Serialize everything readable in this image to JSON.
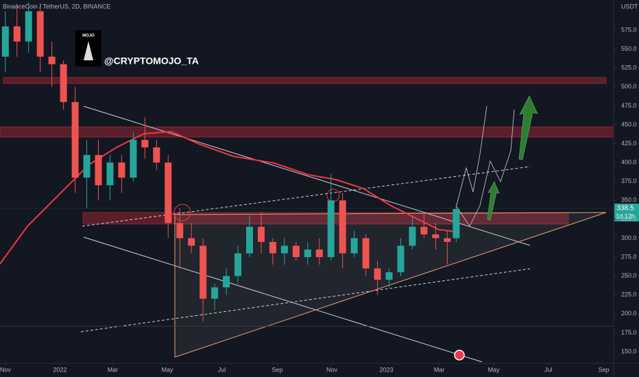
{
  "chart_data": {
    "type": "candlestick",
    "title": "BinanceCoin / TetherUS, 2D, BINANCE",
    "axis_unit": "USDT",
    "watermark": "@CRYPTOMOJO_TA",
    "logo_text": "MOJO",
    "countdown": "1d 12h",
    "up_color": "#26a69a",
    "down_color": "#ef5350",
    "grid": false,
    "xlim": [
      "2021-10-26",
      "2023-09-12"
    ],
    "xticks": [
      {
        "value": "2021-11-01",
        "label": "Nov"
      },
      {
        "value": "2022-01-01",
        "label": "2022"
      },
      {
        "value": "2022-03-01",
        "label": "Mar"
      },
      {
        "value": "2022-05-01",
        "label": "May"
      },
      {
        "value": "2022-07-01",
        "label": "Jul"
      },
      {
        "value": "2022-09-01",
        "label": "Sep"
      },
      {
        "value": "2022-11-01",
        "label": "Nov"
      },
      {
        "value": "2023-01-01",
        "label": "2023"
      },
      {
        "value": "2023-03-01",
        "label": "Mar"
      },
      {
        "value": "2023-05-01",
        "label": "May"
      },
      {
        "value": "2023-07-01",
        "label": "Jul"
      },
      {
        "value": "2023-09-01",
        "label": "Sep"
      }
    ],
    "ylim": [
      134.6,
      614.9
    ],
    "yticks": [
      {
        "value": 150,
        "label": "150.0"
      },
      {
        "value": 175,
        "label": "175.0"
      },
      {
        "value": 200,
        "label": "200.0"
      },
      {
        "value": 225,
        "label": "225.0"
      },
      {
        "value": 250,
        "label": "250.0"
      },
      {
        "value": 275,
        "label": "275.0"
      },
      {
        "value": 300,
        "label": "300.0"
      },
      {
        "value": 325,
        "label": "325.0"
      },
      {
        "value": 350,
        "label": "350.0"
      },
      {
        "value": 375,
        "label": "375.0"
      },
      {
        "value": 400,
        "label": "400.0"
      },
      {
        "value": 425,
        "label": "425.0"
      },
      {
        "value": 450,
        "label": "450.0"
      },
      {
        "value": 475,
        "label": "475.0"
      },
      {
        "value": 500,
        "label": "500.0"
      },
      {
        "value": 525,
        "label": "525.0"
      },
      {
        "value": 550,
        "label": "550.0"
      },
      {
        "value": 575,
        "label": "575.0"
      }
    ],
    "zones": [
      {
        "top": 512.5,
        "bottom": 504.4
      },
      {
        "top": 447.2,
        "bottom": 433.6
      },
      {
        "top": 334,
        "bottom": 318.6
      }
    ],
    "candles": [
      {
        "date": "2021-11-01",
        "open": 540,
        "high": 600,
        "low": 520,
        "close": 580
      },
      {
        "date": "2021-11-14",
        "open": 580,
        "high": 610,
        "low": 540,
        "close": 560
      },
      {
        "date": "2021-11-27",
        "open": 560,
        "high": 612,
        "low": 545,
        "close": 600
      },
      {
        "date": "2021-12-10",
        "open": 600,
        "high": 610,
        "low": 520,
        "close": 540
      },
      {
        "date": "2021-12-23",
        "open": 540,
        "high": 560,
        "low": 500,
        "close": 530
      },
      {
        "date": "2022-01-05",
        "open": 530,
        "high": 535,
        "low": 470,
        "close": 480
      },
      {
        "date": "2022-01-18",
        "open": 480,
        "high": 500,
        "low": 360,
        "close": 380
      },
      {
        "date": "2022-01-31",
        "open": 380,
        "high": 430,
        "low": 340,
        "close": 410
      },
      {
        "date": "2022-02-13",
        "open": 410,
        "high": 430,
        "low": 350,
        "close": 370
      },
      {
        "date": "2022-02-26",
        "open": 370,
        "high": 410,
        "low": 350,
        "close": 400
      },
      {
        "date": "2022-03-11",
        "open": 400,
        "high": 410,
        "low": 360,
        "close": 380
      },
      {
        "date": "2022-03-24",
        "open": 380,
        "high": 440,
        "low": 375,
        "close": 430
      },
      {
        "date": "2022-04-06",
        "open": 430,
        "high": 460,
        "low": 405,
        "close": 420
      },
      {
        "date": "2022-04-19",
        "open": 420,
        "high": 430,
        "low": 390,
        "close": 400
      },
      {
        "date": "2022-05-02",
        "open": 400,
        "high": 410,
        "low": 300,
        "close": 320
      },
      {
        "date": "2022-05-15",
        "open": 320,
        "high": 340,
        "low": 260,
        "close": 300
      },
      {
        "date": "2022-05-28",
        "open": 300,
        "high": 320,
        "low": 280,
        "close": 290
      },
      {
        "date": "2022-06-10",
        "open": 290,
        "high": 300,
        "low": 190,
        "close": 220
      },
      {
        "date": "2022-06-23",
        "open": 220,
        "high": 240,
        "low": 205,
        "close": 235
      },
      {
        "date": "2022-07-06",
        "open": 235,
        "high": 260,
        "low": 225,
        "close": 250
      },
      {
        "date": "2022-07-19",
        "open": 250,
        "high": 290,
        "low": 240,
        "close": 280
      },
      {
        "date": "2022-08-01",
        "open": 280,
        "high": 330,
        "low": 275,
        "close": 315
      },
      {
        "date": "2022-08-14",
        "open": 315,
        "high": 335,
        "low": 280,
        "close": 295
      },
      {
        "date": "2022-08-27",
        "open": 295,
        "high": 300,
        "low": 265,
        "close": 280
      },
      {
        "date": "2022-09-09",
        "open": 280,
        "high": 300,
        "low": 265,
        "close": 290
      },
      {
        "date": "2022-09-22",
        "open": 290,
        "high": 295,
        "low": 270,
        "close": 275
      },
      {
        "date": "2022-10-05",
        "open": 275,
        "high": 295,
        "low": 265,
        "close": 285
      },
      {
        "date": "2022-10-18",
        "open": 285,
        "high": 300,
        "low": 265,
        "close": 275
      },
      {
        "date": "2022-10-31",
        "open": 275,
        "high": 385,
        "low": 270,
        "close": 350
      },
      {
        "date": "2022-11-13",
        "open": 350,
        "high": 360,
        "low": 260,
        "close": 280
      },
      {
        "date": "2022-11-26",
        "open": 280,
        "high": 310,
        "low": 275,
        "close": 300
      },
      {
        "date": "2022-12-09",
        "open": 300,
        "high": 305,
        "low": 250,
        "close": 260
      },
      {
        "date": "2022-12-22",
        "open": 260,
        "high": 270,
        "low": 225,
        "close": 245
      },
      {
        "date": "2023-01-04",
        "open": 245,
        "high": 260,
        "low": 235,
        "close": 255
      },
      {
        "date": "2023-01-17",
        "open": 255,
        "high": 300,
        "low": 250,
        "close": 290
      },
      {
        "date": "2023-01-30",
        "open": 290,
        "high": 330,
        "low": 285,
        "close": 315
      },
      {
        "date": "2023-02-12",
        "open": 315,
        "high": 335,
        "low": 300,
        "close": 305
      },
      {
        "date": "2023-02-25",
        "open": 305,
        "high": 320,
        "low": 285,
        "close": 300
      },
      {
        "date": "2023-03-10",
        "open": 300,
        "high": 310,
        "low": 265,
        "close": 295
      },
      {
        "date": "2023-03-20",
        "open": 300,
        "high": 345,
        "low": 295,
        "close": 338.5
      }
    ]
  }
}
